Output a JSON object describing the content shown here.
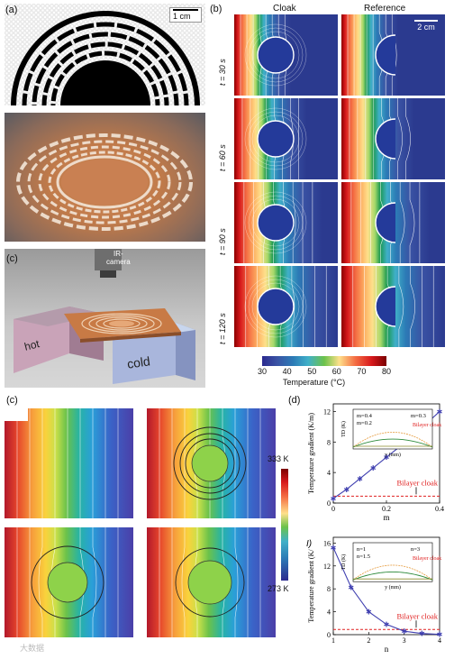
{
  "panel_labels": {
    "a": "(a)",
    "b": "(b)",
    "c_top": "(c)",
    "c_bottom": "(c)",
    "d": "(d)"
  },
  "panel_a": {
    "scalebar": "1 cm"
  },
  "panel_c_top": {
    "camera_label": "IR-\ncamera",
    "hot_label": "hot",
    "cold_label": "cold"
  },
  "panel_b": {
    "col_cloak": "Cloak",
    "col_reference": "Reference",
    "scalebar": "2 cm",
    "rows": [
      "t = 30 s",
      "t = 60 s",
      "t = 90 s",
      "t = 120 s"
    ],
    "colorbar_ticks": [
      "30",
      "40",
      "50",
      "60",
      "70",
      "80"
    ],
    "colorbar_label": "Temperature (°C)"
  },
  "panel_c_bottom": {
    "colorbar_max": "333 K",
    "colorbar_min": "273 K"
  },
  "panel_d": {
    "top": {
      "type": "line",
      "ylabel": "Temperature gradient (K/m)",
      "xlabel": "m",
      "x_ticks": [
        "0",
        "0.2",
        "0.4"
      ],
      "y_ticks": [
        "0",
        "4",
        "8",
        "12"
      ],
      "xlim": [
        0,
        0.4
      ],
      "ylim": [
        0,
        13
      ],
      "x": [
        0,
        0.05,
        0.1,
        0.15,
        0.2,
        0.25,
        0.3,
        0.35,
        0.4
      ],
      "values": [
        0.6,
        1.8,
        3.2,
        4.6,
        6.0,
        7.4,
        8.8,
        10.4,
        12.0
      ],
      "reference_value": 0.9,
      "reference_label": "Bilayer cloak",
      "inset": {
        "ylabel": "TD (K)",
        "xlabel": "y (mm)",
        "y_ticks": [
          "0.0",
          "0.4",
          "0.8"
        ],
        "x_ticks": [
          "-20",
          "-10",
          "0",
          "10",
          "20"
        ],
        "labels": [
          "m=0.4",
          "m=0.2",
          "m=0.3",
          "Bilayer cloak"
        ]
      }
    },
    "bottom": {
      "type": "line",
      "ylabel": "Temperature gradient (K/",
      "xlabel": "n",
      "x_ticks": [
        "1",
        "2",
        "3",
        "4"
      ],
      "y_ticks": [
        "0",
        "4",
        "8",
        "12",
        "16"
      ],
      "xlim": [
        1,
        4
      ],
      "ylim": [
        0,
        17
      ],
      "x": [
        1,
        1.5,
        2,
        2.5,
        3,
        3.5,
        4
      ],
      "values": [
        15.2,
        8.3,
        4.0,
        1.8,
        0.6,
        0.2,
        0.05
      ],
      "reference_value": 0.9,
      "reference_label": "Bilayer cloak",
      "panel_tag": "I)",
      "inset": {
        "ylabel": "TD (K)",
        "xlabel": "y (mm)",
        "y_ticks": [
          "0.0",
          "0.4",
          "0.8"
        ],
        "x_ticks": [
          "-20",
          "0",
          "20"
        ],
        "labels": [
          "n=1",
          "n=1.5",
          "n=3",
          "Bilayer cloak"
        ]
      }
    }
  },
  "colors": {
    "series": "#4040b0",
    "reference": "#e02020",
    "inset_orange": "#e59a3b",
    "inset_green": "#2c8a3a",
    "inset_olive": "#8a8a2a"
  },
  "watermark": "大数据"
}
